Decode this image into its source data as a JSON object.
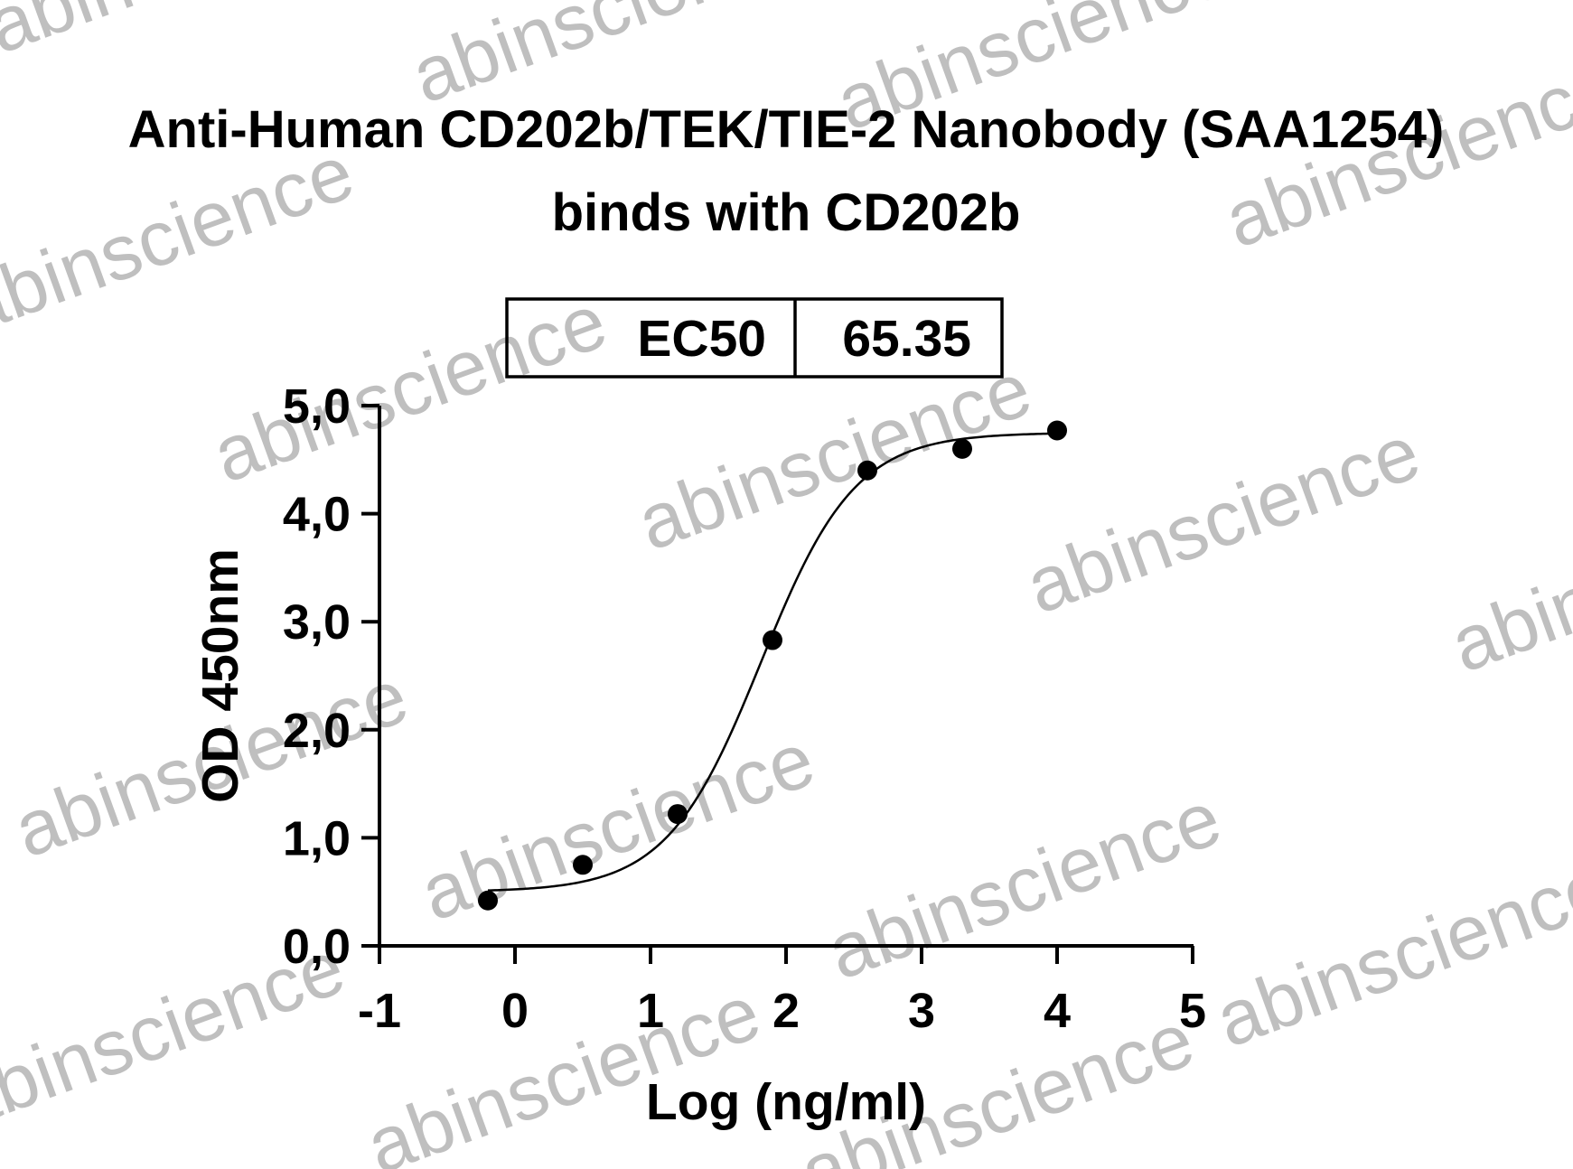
{
  "watermark": {
    "text": "abinscience",
    "color": "#a9a9a9"
  },
  "chart_data": {
    "type": "scatter",
    "title_lines": [
      "Anti-Human CD202b/TEK/TIE-2 Nanobody (SAA1254)",
      "binds with CD202b"
    ],
    "xlabel": "Log (ng/ml)",
    "ylabel": "OD 450nm",
    "xlim": [
      -1,
      5
    ],
    "ylim": [
      0,
      5
    ],
    "x_ticks": [
      "-1",
      "0",
      "1",
      "2",
      "3",
      "4",
      "5"
    ],
    "y_ticks": [
      "0,0",
      "1,0",
      "2,0",
      "3,0",
      "4,0",
      "5,0"
    ],
    "grid": false,
    "legend": null,
    "marker_color": "#000000",
    "line_color": "#000000",
    "series": [
      {
        "x": [
          -0.2,
          0.5,
          1.2,
          1.9,
          2.6,
          3.3,
          4.0
        ],
        "y": [
          0.42,
          0.75,
          1.22,
          2.83,
          4.4,
          4.6,
          4.77
        ]
      }
    ],
    "fit_curve": {
      "model": "4PL",
      "bottom": 0.5,
      "top": 4.75,
      "logEC50": 1.815,
      "hill_slope": 1.25
    },
    "ec50_table": {
      "label": "EC50",
      "value": "65.35"
    }
  }
}
